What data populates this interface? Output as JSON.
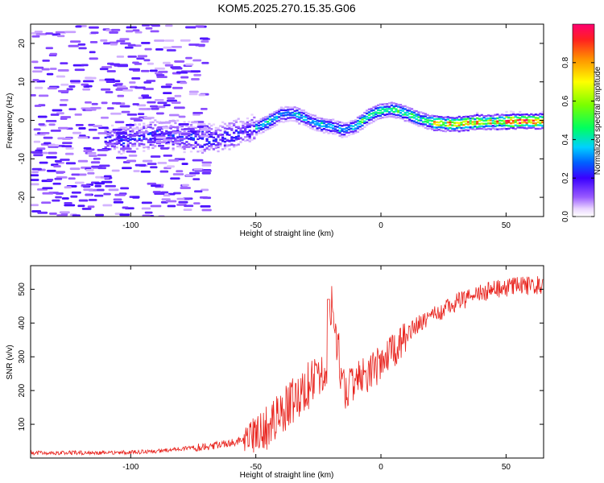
{
  "title": "KOM5.2025.270.15.35.G06",
  "chart_data": [
    {
      "type": "heatmap",
      "xlabel": "Height of straight line (km)",
      "ylabel": "Frequency (Hz)",
      "xlim": [
        -140,
        65
      ],
      "ylim": [
        -25,
        25
      ],
      "x_ticks": [
        -100,
        -50,
        0,
        50
      ],
      "y_ticks": [
        -20,
        -10,
        0,
        10,
        20
      ],
      "colorbar": {
        "label": "Normalized spectral amplitude",
        "range": [
          0,
          1
        ],
        "ticks": [
          0.0,
          0.2,
          0.4,
          0.6,
          0.8
        ]
      },
      "ridge": {
        "x": [
          -110,
          -100,
          -90,
          -80,
          -70,
          -60,
          -50,
          -45,
          -40,
          -35,
          -30,
          -25,
          -20,
          -15,
          -10,
          -5,
          0,
          5,
          10,
          15,
          20,
          25,
          30,
          35,
          40,
          45,
          50,
          55,
          60,
          65
        ],
        "y": [
          -5,
          -4.5,
          -3.5,
          -4,
          -5,
          -4,
          -2,
          -0.5,
          1.5,
          1.8,
          0.5,
          -1,
          -1.5,
          -2.5,
          -1.5,
          1,
          2.5,
          2.8,
          1.8,
          0.5,
          -0.5,
          -0.8,
          -1,
          -0.6,
          -0.4,
          -0.4,
          -0.3,
          -0.2,
          -0.2,
          -0.2
        ]
      }
    },
    {
      "type": "line",
      "xlabel": "Height of straight line (km)",
      "ylabel": "SNR (v/v)",
      "xlim": [
        -140,
        65
      ],
      "ylim": [
        0,
        570
      ],
      "x_ticks": [
        -100,
        -50,
        0,
        50
      ],
      "y_ticks": [
        100,
        200,
        300,
        400,
        500
      ],
      "color": "#e8221c",
      "series": [
        {
          "x": [
            -140,
            -130,
            -120,
            -110,
            -100,
            -90,
            -80,
            -70,
            -65,
            -60,
            -55,
            -50,
            -45,
            -40,
            -35,
            -30,
            -25,
            -21,
            -20,
            -15,
            -10,
            -5,
            0,
            5,
            10,
            15,
            20,
            25,
            30,
            35,
            40,
            45,
            50,
            55,
            60,
            65
          ],
          "y": [
            15,
            15,
            16,
            16,
            17,
            20,
            28,
            32,
            40,
            45,
            55,
            70,
            95,
            130,
            170,
            210,
            230,
            250,
            470,
            210,
            230,
            250,
            280,
            320,
            360,
            400,
            420,
            440,
            460,
            475,
            490,
            500,
            505,
            510,
            510,
            512
          ]
        }
      ]
    }
  ]
}
